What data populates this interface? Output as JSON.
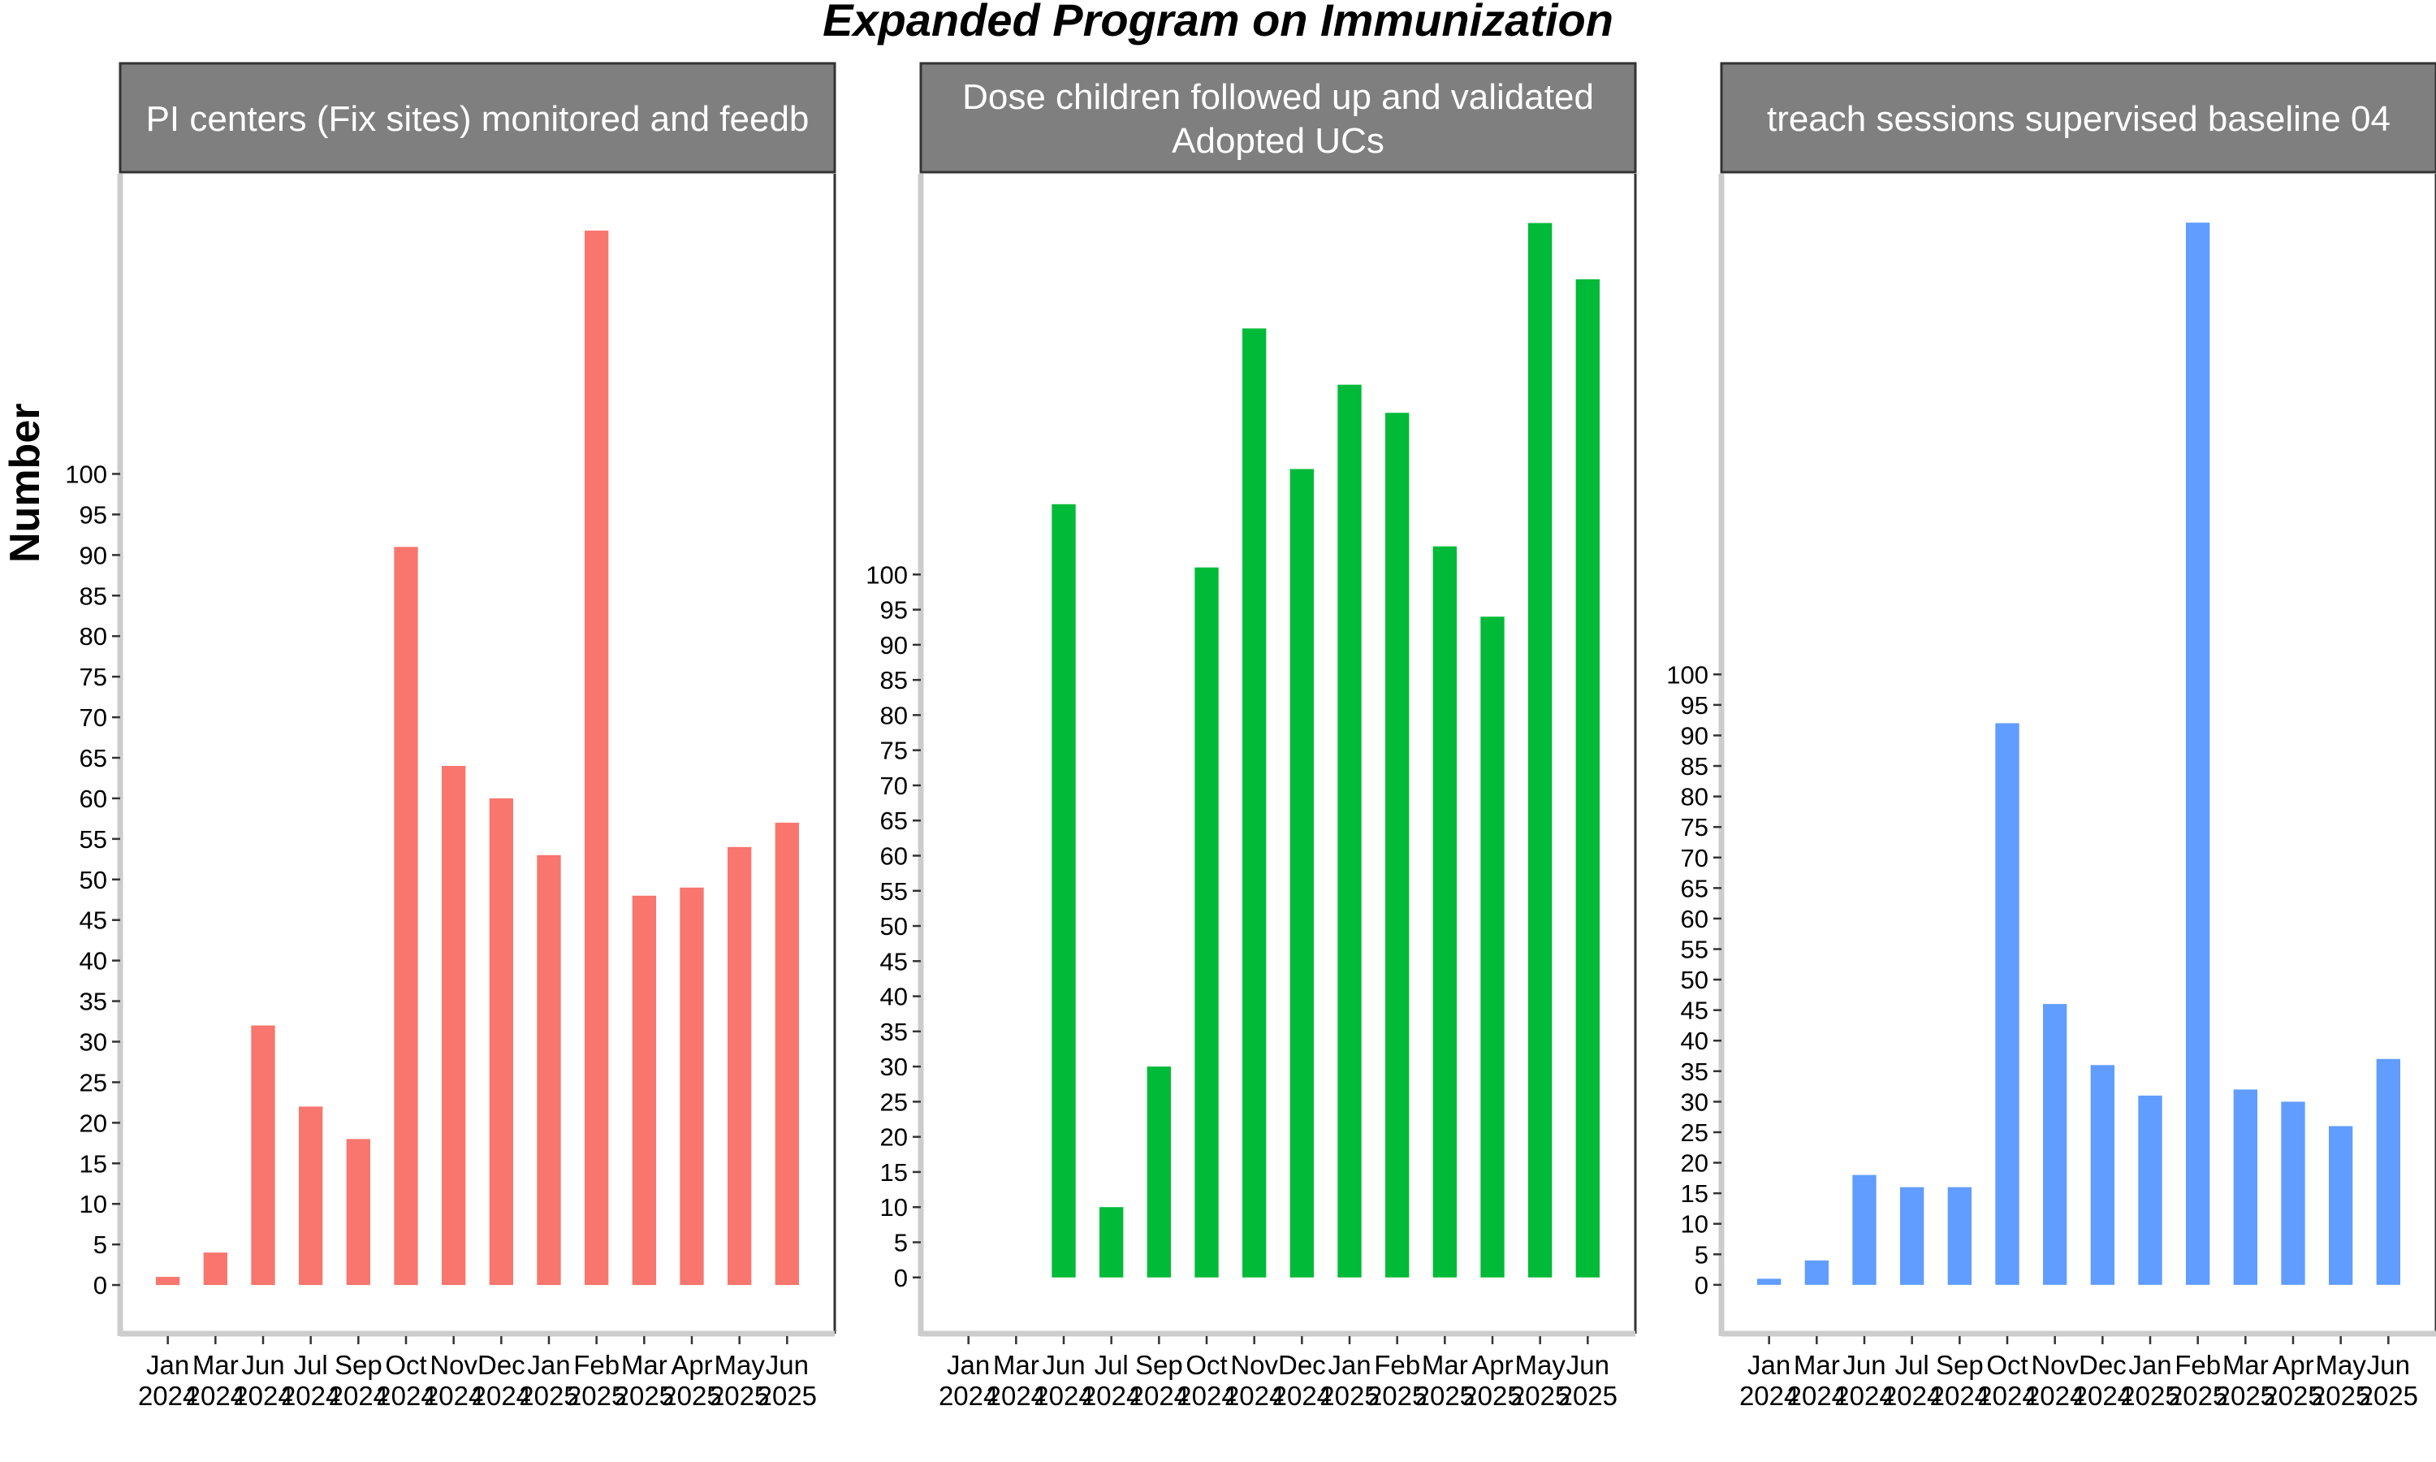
{
  "chart_data": {
    "type": "bar",
    "title": "Expanded Program on Immunization",
    "ylabel": "Number",
    "xlabel": "",
    "categories": [
      [
        "Jan",
        "2024"
      ],
      [
        "Mar",
        "2024"
      ],
      [
        "Jun",
        "2024"
      ],
      [
        "Jul",
        "2024"
      ],
      [
        "Sep",
        "2024"
      ],
      [
        "Oct",
        "2024"
      ],
      [
        "Nov",
        "2024"
      ],
      [
        "Dec",
        "2024"
      ],
      [
        "Jan",
        "2025"
      ],
      [
        "Feb",
        "2025"
      ],
      [
        "Mar",
        "2025"
      ],
      [
        "Apr",
        "2025"
      ],
      [
        "May",
        "2025"
      ],
      [
        "Jun",
        "2025"
      ]
    ],
    "y_ticks": [
      0,
      5,
      10,
      15,
      20,
      25,
      30,
      35,
      40,
      45,
      50,
      55,
      60,
      65,
      70,
      75,
      80,
      85,
      90,
      95,
      100
    ],
    "grid": false,
    "legend": "none",
    "panels": [
      {
        "strip_lines": [
          "PI centers (Fix sites) monitored and feedb"
        ],
        "color": "#F8766D",
        "values": [
          1,
          4,
          32,
          22,
          18,
          91,
          64,
          60,
          53,
          130,
          48,
          49,
          54,
          57
        ],
        "ylim": [
          -6,
          137
        ]
      },
      {
        "strip_lines": [
          "Dose children followed up and validated",
          "Adopted UCs"
        ],
        "color": "#00BA38",
        "values": [
          null,
          null,
          110,
          10,
          30,
          101,
          135,
          115,
          127,
          123,
          104,
          94,
          150,
          142
        ],
        "ylim": [
          -8,
          157
        ]
      },
      {
        "strip_lines": [
          "treach sessions supervised baseline 04"
        ],
        "color": "#619CFF",
        "values": [
          1,
          4,
          18,
          16,
          16,
          92,
          46,
          36,
          31,
          174,
          32,
          30,
          26,
          37
        ],
        "ylim": [
          -8,
          182
        ]
      }
    ]
  }
}
